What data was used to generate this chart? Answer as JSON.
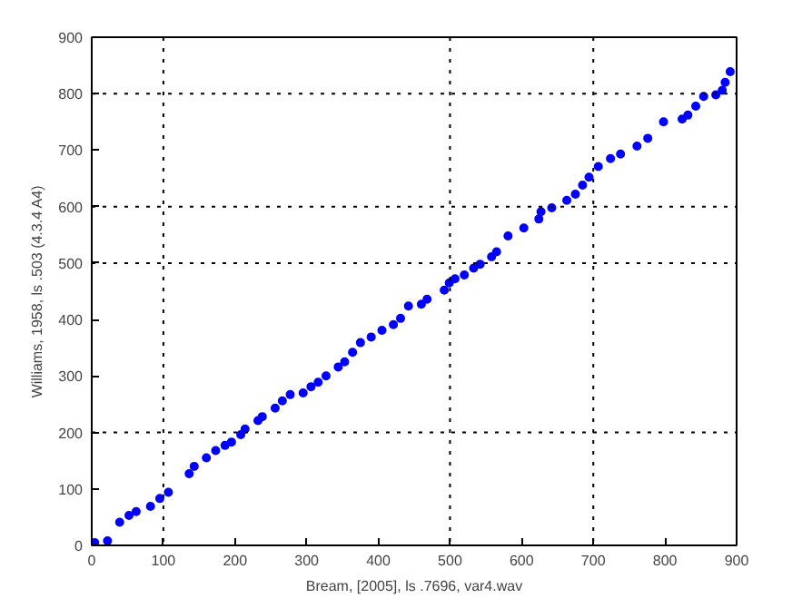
{
  "chart_data": {
    "type": "scatter",
    "xlabel": "Bream, [2005], ls .7696, var4.wav",
    "ylabel": "Williams, 1958, ls .503 (4.3.4 A4)",
    "xlim": [
      0,
      900
    ],
    "ylim": [
      0,
      900
    ],
    "xticks": [
      0,
      100,
      200,
      300,
      400,
      500,
      600,
      700,
      800,
      900
    ],
    "yticks": [
      0,
      100,
      200,
      300,
      400,
      500,
      600,
      700,
      800,
      900
    ],
    "grid": false,
    "marker": "circle",
    "ref_lines": [
      {
        "axis": "x",
        "value": 100,
        "color": "#000000",
        "line_style": "dotted"
      },
      {
        "axis": "x",
        "value": 500,
        "color": "#000000",
        "line_style": "dotted"
      },
      {
        "axis": "x",
        "value": 700,
        "color": "#000000",
        "line_style": "dotted"
      },
      {
        "axis": "y",
        "value": 200,
        "color": "#000000",
        "line_style": "dotted"
      },
      {
        "axis": "y",
        "value": 500,
        "color": "#000000",
        "line_style": "dotted"
      },
      {
        "axis": "y",
        "value": 600,
        "color": "#000000",
        "line_style": "dotted"
      },
      {
        "axis": "y",
        "value": 800,
        "color": "#000000",
        "line_style": "dotted"
      }
    ],
    "series": [
      {
        "color": "#0000ff",
        "x": [
          4,
          22,
          39,
          52,
          62,
          82,
          95,
          107,
          136,
          143,
          160,
          173,
          186,
          195,
          208,
          214,
          232,
          238,
          256,
          266,
          277,
          295,
          306,
          316,
          327,
          344,
          353,
          364,
          375,
          390,
          405,
          421,
          431,
          442,
          460,
          468,
          492,
          499,
          507,
          520,
          533,
          542,
          558,
          565,
          581,
          603,
          624,
          627,
          642,
          663,
          675,
          685,
          694,
          707,
          724,
          738,
          761,
          776,
          798,
          824,
          832,
          843,
          854,
          871,
          880,
          884,
          891
        ],
        "values": [
          5,
          8,
          41,
          53,
          60,
          69,
          83,
          94,
          127,
          140,
          155,
          168,
          177,
          183,
          196,
          206,
          221,
          228,
          243,
          256,
          267,
          270,
          281,
          289,
          300,
          316,
          325,
          342,
          359,
          369,
          381,
          391,
          402,
          424,
          427,
          436,
          452,
          465,
          472,
          479,
          491,
          498,
          511,
          520,
          548,
          562,
          578,
          591,
          598,
          611,
          622,
          638,
          652,
          671,
          685,
          693,
          707,
          721,
          750,
          755,
          762,
          778,
          795,
          798,
          806,
          820,
          839
        ]
      }
    ]
  }
}
